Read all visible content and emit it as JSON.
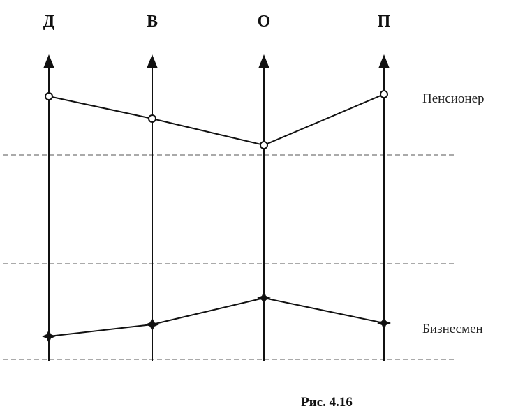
{
  "axes": [
    {
      "label": "Д"
    },
    {
      "label": "В"
    },
    {
      "label": "О"
    },
    {
      "label": "П"
    }
  ],
  "series": [
    {
      "name": "Пенсионер",
      "marker": "open-circle"
    },
    {
      "name": "Бизнесмен",
      "marker": "filled-star"
    }
  ],
  "caption": "Рис. 4.16",
  "colors": {
    "line": "#111111",
    "gridline": "#999999"
  }
}
